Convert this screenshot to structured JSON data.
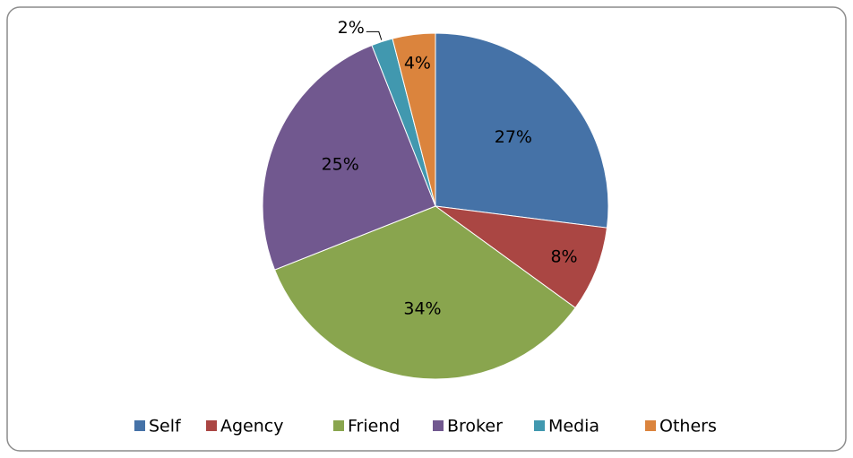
{
  "chart_data": {
    "type": "pie",
    "categories": [
      "Self",
      "Agency",
      "Friend",
      "Broker",
      "Media",
      "Others"
    ],
    "values": [
      27,
      8,
      34,
      25,
      2,
      4
    ],
    "value_labels": [
      "27%",
      "8%",
      "34%",
      "25%",
      "2%",
      "4%"
    ],
    "colors": [
      "#4572a7",
      "#aa4643",
      "#89a54e",
      "#71588f",
      "#4198af",
      "#db843d"
    ],
    "legend": "bottom"
  }
}
